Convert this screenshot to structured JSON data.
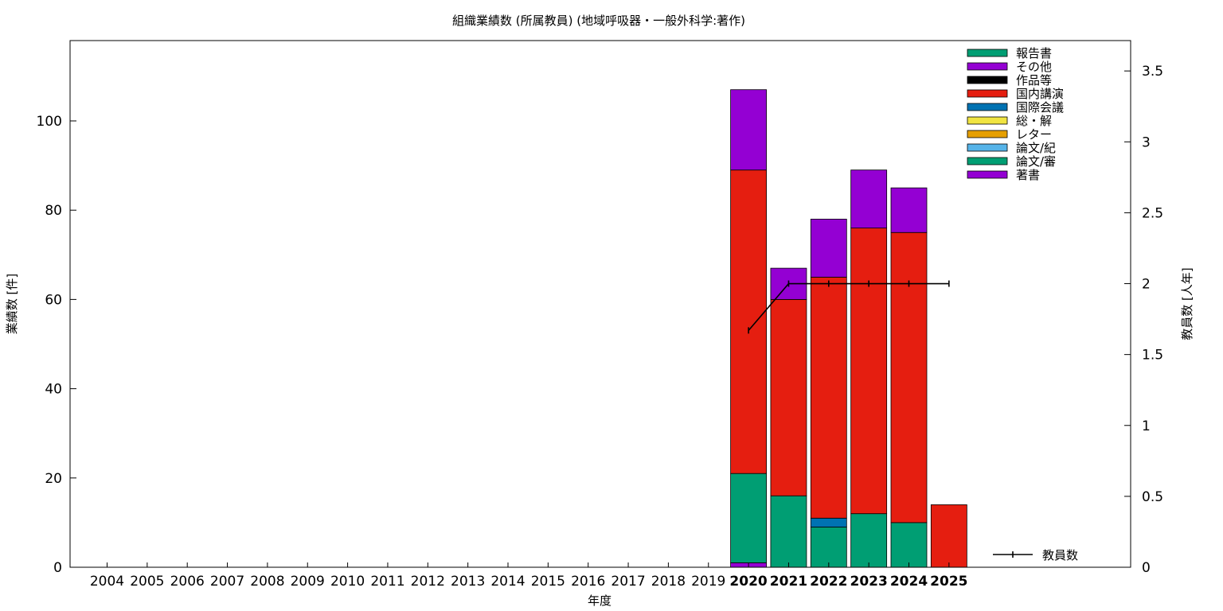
{
  "chart_data": {
    "type": "bar",
    "stacked": true,
    "title": "組織業績数 (所属教員) (地域呼吸器・一般外科学:著作)",
    "xlabel": "年度",
    "ylabel": "業績数 [件]",
    "y2label": "教員数 [人年]",
    "categories": [
      "2004",
      "2005",
      "2006",
      "2007",
      "2008",
      "2009",
      "2010",
      "2011",
      "2012",
      "2013",
      "2014",
      "2015",
      "2016",
      "2017",
      "2018",
      "2019",
      "2020",
      "2021",
      "2022",
      "2023",
      "2024",
      "2025"
    ],
    "bold_categories": [
      "2020",
      "2021",
      "2022",
      "2023",
      "2024",
      "2025"
    ],
    "ylim": [
      0,
      118
    ],
    "yticks": [
      0,
      20,
      40,
      60,
      80,
      100
    ],
    "y2lim": [
      0,
      3.7142
    ],
    "y2ticks": [
      0,
      0.5,
      1,
      1.5,
      2,
      2.5,
      3,
      3.5
    ],
    "y2tick_labels": [
      "0",
      "0.5",
      "1",
      "1.5",
      "2",
      "2.5",
      "3",
      "3.5"
    ],
    "grid": false,
    "legend_position": "top-right",
    "series": [
      {
        "name": "著書",
        "color": "#9400d3",
        "values": [
          0,
          0,
          0,
          0,
          0,
          0,
          0,
          0,
          0,
          0,
          0,
          0,
          0,
          0,
          0,
          0,
          1,
          0,
          0,
          0,
          0,
          0
        ]
      },
      {
        "name": "論文/審",
        "color": "#009e73",
        "values": [
          0,
          0,
          0,
          0,
          0,
          0,
          0,
          0,
          0,
          0,
          0,
          0,
          0,
          0,
          0,
          0,
          20,
          16,
          9,
          12,
          10,
          0
        ]
      },
      {
        "name": "論文/紀",
        "color": "#56b4e9",
        "values": [
          0,
          0,
          0,
          0,
          0,
          0,
          0,
          0,
          0,
          0,
          0,
          0,
          0,
          0,
          0,
          0,
          0,
          0,
          0,
          0,
          0,
          0
        ]
      },
      {
        "name": "レター",
        "color": "#e69f00",
        "values": [
          0,
          0,
          0,
          0,
          0,
          0,
          0,
          0,
          0,
          0,
          0,
          0,
          0,
          0,
          0,
          0,
          0,
          0,
          0,
          0,
          0,
          0
        ]
      },
      {
        "name": "総・解",
        "color": "#f0e442",
        "values": [
          0,
          0,
          0,
          0,
          0,
          0,
          0,
          0,
          0,
          0,
          0,
          0,
          0,
          0,
          0,
          0,
          0,
          0,
          0,
          0,
          0,
          0
        ]
      },
      {
        "name": "国際会議",
        "color": "#0072b2",
        "values": [
          0,
          0,
          0,
          0,
          0,
          0,
          0,
          0,
          0,
          0,
          0,
          0,
          0,
          0,
          0,
          0,
          0,
          0,
          2,
          0,
          0,
          0
        ]
      },
      {
        "name": "国内講演",
        "color": "#e51e10",
        "values": [
          0,
          0,
          0,
          0,
          0,
          0,
          0,
          0,
          0,
          0,
          0,
          0,
          0,
          0,
          0,
          0,
          68,
          44,
          54,
          64,
          65,
          14
        ]
      },
      {
        "name": "作品等",
        "color": "#000000",
        "values": [
          0,
          0,
          0,
          0,
          0,
          0,
          0,
          0,
          0,
          0,
          0,
          0,
          0,
          0,
          0,
          0,
          0,
          0,
          0,
          0,
          0,
          0
        ]
      },
      {
        "name": "その他",
        "color": "#9400d3",
        "values": [
          0,
          0,
          0,
          0,
          0,
          0,
          0,
          0,
          0,
          0,
          0,
          0,
          0,
          0,
          0,
          0,
          18,
          7,
          13,
          13,
          10,
          0
        ]
      },
      {
        "name": "報告書",
        "color": "#009e73",
        "values": [
          0,
          0,
          0,
          0,
          0,
          0,
          0,
          0,
          0,
          0,
          0,
          0,
          0,
          0,
          0,
          0,
          0,
          0,
          0,
          0,
          0,
          0
        ]
      }
    ],
    "line_series": {
      "name": "教員数",
      "color": "#000000",
      "axis": "y2",
      "points": [
        {
          "x": "2020",
          "y": 1.67
        },
        {
          "x": "2021",
          "y": 2
        },
        {
          "x": "2022",
          "y": 2
        },
        {
          "x": "2023",
          "y": 2
        },
        {
          "x": "2024",
          "y": 2
        },
        {
          "x": "2025",
          "y": 2
        }
      ]
    }
  }
}
